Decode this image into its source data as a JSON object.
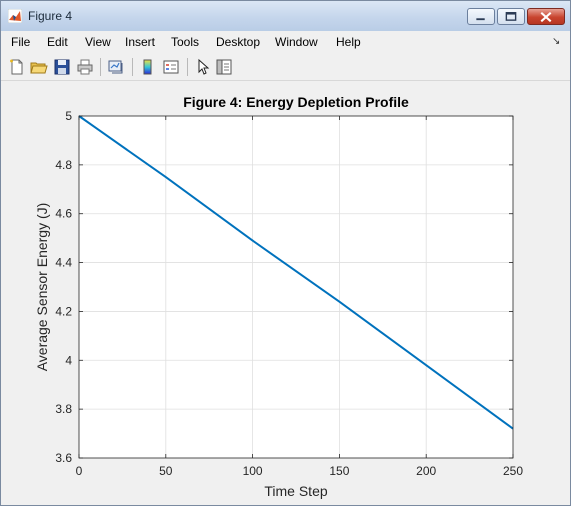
{
  "window": {
    "title": "Figure 4"
  },
  "menu": [
    {
      "label": "File"
    },
    {
      "label": "Edit"
    },
    {
      "label": "View"
    },
    {
      "label": "Insert"
    },
    {
      "label": "Tools"
    },
    {
      "label": "Desktop"
    },
    {
      "label": "Window"
    },
    {
      "label": "Help"
    }
  ],
  "toolbar": [
    {
      "icon": "new-figure-icon"
    },
    {
      "icon": "open-file-icon"
    },
    {
      "icon": "save-icon"
    },
    {
      "icon": "print-icon"
    },
    {
      "icon": "link-plot-icon"
    },
    {
      "icon": "insert-colorbar-icon"
    },
    {
      "icon": "insert-legend-icon"
    },
    {
      "icon": "edit-plot-pointer-icon"
    },
    {
      "icon": "property-inspector-icon"
    }
  ],
  "colors": {
    "line": "#0072bd",
    "axes_bg": "#ffffff",
    "figure_bg": "#f0f0f0",
    "grid": "#dfdfdf"
  },
  "chart_data": {
    "type": "line",
    "title": "Figure 4: Energy Depletion Profile",
    "xlabel": "Time Step",
    "ylabel": "Average Sensor Energy (J)",
    "xlim": [
      0,
      250
    ],
    "ylim": [
      3.6,
      5
    ],
    "xticks": [
      0,
      50,
      100,
      150,
      200,
      250
    ],
    "xtick_labels": [
      "0",
      "50",
      "100",
      "150",
      "200",
      "250"
    ],
    "yticks": [
      3.6,
      3.8,
      4,
      4.2,
      4.4,
      4.6,
      4.8,
      5
    ],
    "ytick_labels": [
      "3.6",
      "3.8",
      "4",
      "4.2",
      "4.4",
      "4.6",
      "4.8",
      "5"
    ],
    "grid": true,
    "series": [
      {
        "x": [
          0,
          50,
          100,
          150,
          200,
          250
        ],
        "y": [
          5.0,
          4.75,
          4.49,
          4.24,
          3.98,
          3.72
        ]
      }
    ]
  }
}
